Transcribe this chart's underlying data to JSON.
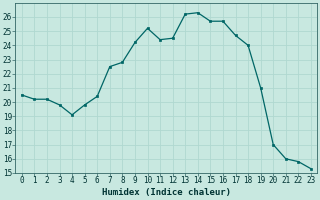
{
  "x": [
    0,
    1,
    2,
    3,
    4,
    5,
    6,
    7,
    8,
    9,
    10,
    11,
    12,
    13,
    14,
    15,
    16,
    17,
    18,
    19,
    20,
    21,
    22,
    23
  ],
  "y": [
    20.5,
    20.2,
    20.2,
    19.8,
    19.1,
    19.8,
    20.4,
    22.5,
    22.8,
    24.2,
    25.2,
    24.4,
    24.5,
    26.2,
    26.3,
    25.7,
    25.7,
    24.7,
    24.0,
    21.0,
    17.0,
    16.0,
    15.8,
    15.3
  ],
  "xlabel": "Humidex (Indice chaleur)",
  "xlim": [
    -0.5,
    23.5
  ],
  "ylim": [
    15,
    27
  ],
  "yticks": [
    15,
    16,
    17,
    18,
    19,
    20,
    21,
    22,
    23,
    24,
    25,
    26
  ],
  "xticks": [
    0,
    1,
    2,
    3,
    4,
    5,
    6,
    7,
    8,
    9,
    10,
    11,
    12,
    13,
    14,
    15,
    16,
    17,
    18,
    19,
    20,
    21,
    22,
    23
  ],
  "line_color": "#006666",
  "bg_color": "#c8e8e0",
  "grid_color": "#b0d8d0",
  "label_fontsize": 6.5,
  "tick_fontsize": 5.5
}
